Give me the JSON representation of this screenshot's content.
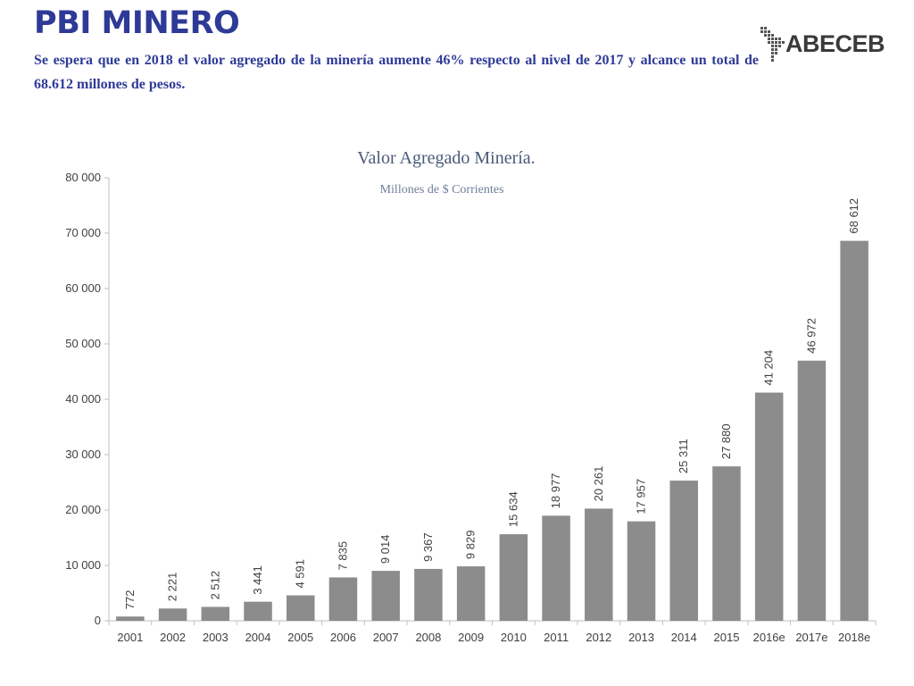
{
  "header": {
    "title": "PBI MINERO",
    "subtitle": "Se espera que en 2018 el valor agregado de la minería aumente 46% respecto al nivel de 2017 y alcance  un total de 68.612 millones de pesos."
  },
  "logo": {
    "text": "ABECEB",
    "icon": "latin-america-map-dots-icon"
  },
  "colors": {
    "title": "#2e3a97",
    "bar": "#8c8c8c",
    "axis": "#bfbfbf",
    "text": "#404040"
  },
  "chart_data": {
    "type": "bar",
    "title": "Valor Agregado Minería.",
    "subtitle": "Millones de $ Corrientes",
    "categories": [
      "2001",
      "2002",
      "2003",
      "2004",
      "2005",
      "2006",
      "2007",
      "2008",
      "2009",
      "2010",
      "2011",
      "2012",
      "2013",
      "2014",
      "2015",
      "2016e",
      "2017e",
      "2018e"
    ],
    "values": [
      772,
      2221,
      2512,
      3441,
      4591,
      7835,
      9014,
      9367,
      9829,
      15634,
      18977,
      20261,
      17957,
      25311,
      27880,
      41204,
      46972,
      68612
    ],
    "value_labels": [
      "772",
      "2 221",
      "2 512",
      "3 441",
      "4 591",
      "7 835",
      "9 014",
      "9 367",
      "9 829",
      "15 634",
      "18 977",
      "20 261",
      "17 957",
      "25 311",
      "27 880",
      "41 204",
      "46 972",
      "68 612"
    ],
    "y_ticks": [
      0,
      10000,
      20000,
      30000,
      40000,
      50000,
      60000,
      70000,
      80000
    ],
    "y_tick_labels": [
      "0",
      "10 000",
      "20 000",
      "30 000",
      "40 000",
      "50 000",
      "60 000",
      "70 000",
      "80 000"
    ],
    "ylim": [
      0,
      80000
    ],
    "grid": false,
    "legend": "none",
    "xlabel": "",
    "ylabel": ""
  }
}
